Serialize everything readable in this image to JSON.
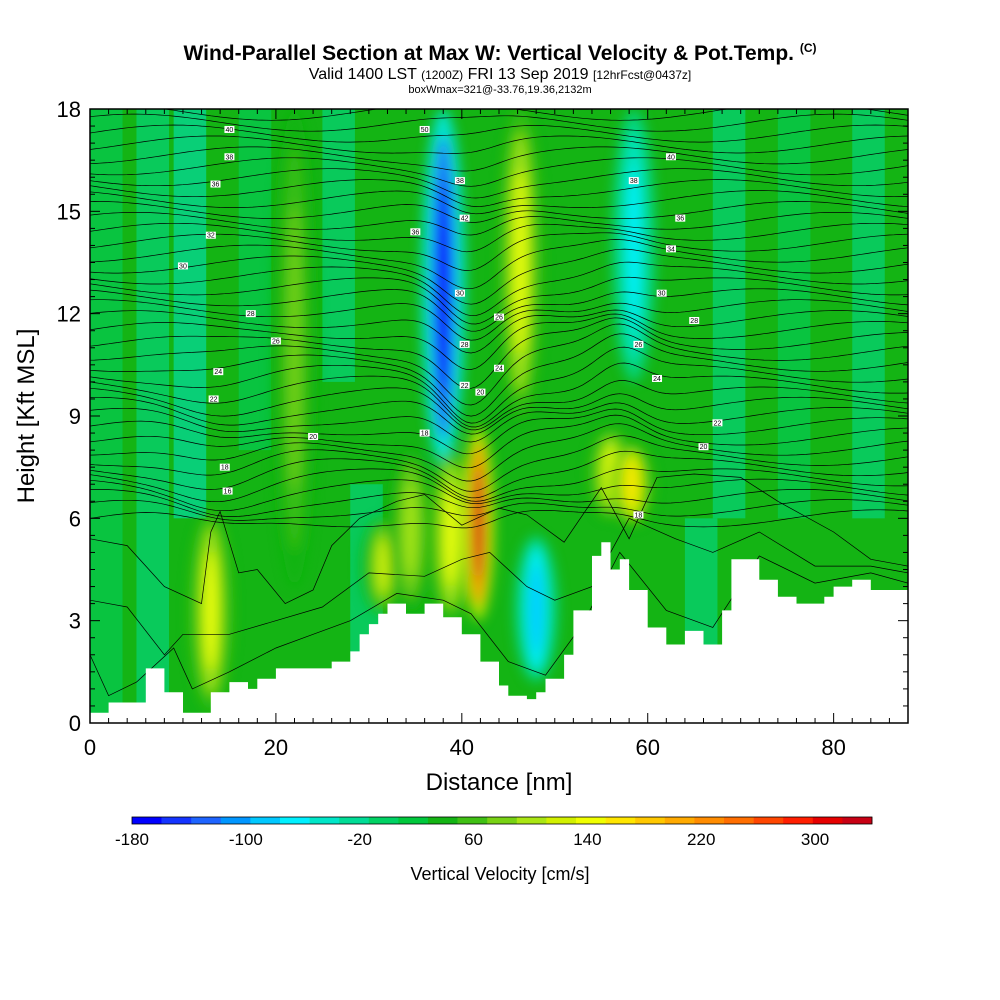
{
  "title": {
    "main": "Wind-Parallel Section at Max W: Vertical Velocity & Pot.Temp.",
    "copyright": "(C)",
    "valid_prefix": "Valid 1400 LST",
    "utc": "(1200Z)",
    "valid_date": "FRI 13 Sep 2019",
    "forecast": "[12hrFcst@0437z]",
    "box": "boxWmax=321@-33.76,19.36,2132m"
  },
  "chart_data": {
    "type": "heatmap",
    "xlabel": "Distance [nm]",
    "ylabel": "Height [Kft MSL]",
    "xlim": [
      0,
      88
    ],
    "ylim": [
      0,
      18
    ],
    "x_ticks": [
      0,
      20,
      40,
      60,
      80
    ],
    "y_ticks": [
      0,
      3,
      6,
      9,
      12,
      15,
      18
    ],
    "colorbar": {
      "label": "Vertical Velocity [cm/s]",
      "tick_labels": [
        "-180",
        "-100",
        "-20",
        "60",
        "140",
        "220",
        "300"
      ],
      "tick_values": [
        -180,
        -100,
        -20,
        60,
        140,
        220,
        300
      ],
      "range": [
        -180,
        340
      ],
      "colors": [
        "#0000ff",
        "#1434ff",
        "#1e64ff",
        "#0096ff",
        "#00c8ff",
        "#00f0ff",
        "#00e6c8",
        "#00dc96",
        "#00d264",
        "#00c83c",
        "#14b414",
        "#40c014",
        "#78d214",
        "#aae614",
        "#d2f000",
        "#f0ff00",
        "#ffe600",
        "#ffc800",
        "#ffaa00",
        "#ff8c00",
        "#ff6e00",
        "#ff4600",
        "#ff1e00",
        "#e60000",
        "#c80014"
      ]
    },
    "velocity_features": [
      {
        "x": 13,
        "z_bottom": 0.4,
        "z_top": 6.2,
        "peak": 150
      },
      {
        "x": 22,
        "z_bottom": 4.0,
        "z_top": 18.0,
        "peak": 80
      },
      {
        "x": 31.5,
        "z_bottom": 3.2,
        "z_top": 6.0,
        "peak": 120
      },
      {
        "x": 34.5,
        "z_bottom": 3.3,
        "z_top": 8.0,
        "peak": 110
      },
      {
        "x": 38.0,
        "z_bottom": 7.5,
        "z_top": 18.0,
        "peak": -170
      },
      {
        "x": 38.8,
        "z_bottom": 3.0,
        "z_top": 8.0,
        "peak": 140
      },
      {
        "x": 41.8,
        "z_bottom": 3.0,
        "z_top": 8.7,
        "peak": 330
      },
      {
        "x": 46.3,
        "z_bottom": 9.0,
        "z_top": 18.0,
        "peak": 150
      },
      {
        "x": 48.0,
        "z_bottom": 1.2,
        "z_top": 5.5,
        "peak": -90
      },
      {
        "x": 56.0,
        "z_bottom": 6.0,
        "z_top": 8.6,
        "peak": 140
      },
      {
        "x": 58.3,
        "z_bottom": 5.8,
        "z_top": 8.2,
        "peak": 160
      },
      {
        "x": 58.5,
        "z_bottom": 10.0,
        "z_top": 18.0,
        "peak": -60
      }
    ],
    "terrain_profile": {
      "x": [
        0,
        2,
        2,
        6,
        6,
        8,
        8,
        10,
        10,
        13,
        13,
        15,
        15,
        17,
        17,
        18,
        18,
        20,
        20,
        26,
        26,
        28,
        28,
        29,
        29,
        30,
        30,
        31,
        31,
        32,
        32,
        34,
        34,
        36,
        36,
        38,
        38,
        40,
        40,
        42,
        42,
        44,
        44,
        45,
        45,
        47,
        47,
        48,
        48,
        49,
        49,
        51,
        51,
        52,
        52,
        54,
        54,
        55,
        55,
        56,
        56,
        57,
        57,
        58,
        58,
        60,
        60,
        62,
        62,
        64,
        64,
        66,
        66,
        68,
        68,
        69,
        69,
        72,
        72,
        74,
        74,
        76,
        76,
        79,
        79,
        80,
        80,
        82,
        82,
        84,
        84,
        88
      ],
      "z": [
        0.3,
        0.3,
        0.6,
        0.6,
        1.6,
        1.6,
        0.9,
        0.9,
        0.3,
        0.3,
        0.9,
        0.9,
        1.2,
        1.2,
        1.0,
        1.0,
        1.3,
        1.3,
        1.6,
        1.6,
        1.8,
        1.8,
        2.1,
        2.1,
        2.6,
        2.6,
        2.9,
        2.9,
        3.2,
        3.2,
        3.5,
        3.5,
        3.2,
        3.2,
        3.5,
        3.5,
        3.1,
        3.1,
        2.6,
        2.6,
        1.8,
        1.8,
        1.1,
        1.1,
        0.8,
        0.8,
        0.7,
        0.7,
        0.9,
        0.9,
        1.3,
        1.3,
        2.0,
        2.0,
        3.3,
        3.3,
        4.9,
        4.9,
        5.3,
        5.3,
        4.5,
        4.5,
        4.8,
        4.8,
        3.9,
        3.9,
        2.8,
        2.8,
        2.3,
        2.3,
        2.7,
        2.7,
        2.3,
        2.3,
        3.3,
        3.3,
        4.8,
        4.8,
        4.2,
        4.2,
        3.7,
        3.7,
        3.5,
        3.5,
        3.7,
        3.7,
        4.0,
        4.0,
        4.2,
        4.2,
        3.9,
        3.9
      ]
    },
    "isentrope_labels": [
      {
        "x": 15,
        "z": 17.4,
        "text": "40"
      },
      {
        "x": 15,
        "z": 16.6,
        "text": "38"
      },
      {
        "x": 13.5,
        "z": 15.8,
        "text": "36"
      },
      {
        "x": 13,
        "z": 14.3,
        "text": "32"
      },
      {
        "x": 10,
        "z": 13.4,
        "text": "30"
      },
      {
        "x": 17.3,
        "z": 12.0,
        "text": "28"
      },
      {
        "x": 20,
        "z": 11.2,
        "text": "26"
      },
      {
        "x": 13.8,
        "z": 10.3,
        "text": "24"
      },
      {
        "x": 13.3,
        "z": 9.5,
        "text": "22"
      },
      {
        "x": 24,
        "z": 8.4,
        "text": "20"
      },
      {
        "x": 14.5,
        "z": 7.5,
        "text": "18"
      },
      {
        "x": 14.8,
        "z": 6.8,
        "text": "16"
      },
      {
        "x": 36,
        "z": 8.5,
        "text": "18"
      },
      {
        "x": 35,
        "z": 14.4,
        "text": "36"
      },
      {
        "x": 36,
        "z": 17.4,
        "text": "50"
      },
      {
        "x": 39.8,
        "z": 15.9,
        "text": "38"
      },
      {
        "x": 40.3,
        "z": 14.8,
        "text": "42"
      },
      {
        "x": 39.8,
        "z": 12.6,
        "text": "30"
      },
      {
        "x": 40.3,
        "z": 11.1,
        "text": "28"
      },
      {
        "x": 40.3,
        "z": 9.9,
        "text": "22"
      },
      {
        "x": 42,
        "z": 9.7,
        "text": "20"
      },
      {
        "x": 44,
        "z": 11.9,
        "text": "26"
      },
      {
        "x": 44,
        "z": 10.4,
        "text": "24"
      },
      {
        "x": 62.5,
        "z": 16.6,
        "text": "40"
      },
      {
        "x": 58.5,
        "z": 15.9,
        "text": "38"
      },
      {
        "x": 63.5,
        "z": 14.8,
        "text": "36"
      },
      {
        "x": 62.5,
        "z": 13.9,
        "text": "34"
      },
      {
        "x": 61.5,
        "z": 12.6,
        "text": "30"
      },
      {
        "x": 65,
        "z": 11.8,
        "text": "28"
      },
      {
        "x": 59,
        "z": 11.1,
        "text": "26"
      },
      {
        "x": 61,
        "z": 10.1,
        "text": "24"
      },
      {
        "x": 67.5,
        "z": 8.8,
        "text": "22"
      },
      {
        "x": 66,
        "z": 8.1,
        "text": "20"
      },
      {
        "x": 59,
        "z": 6.1,
        "text": "18"
      }
    ]
  }
}
